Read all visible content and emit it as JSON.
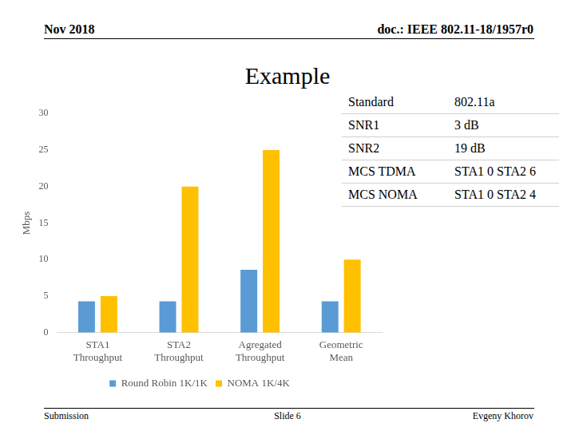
{
  "slide": {
    "date": "Nov 2018",
    "doc": "doc.: IEEE 802.11-18/1957r0",
    "title": "Example"
  },
  "table": {
    "rows": [
      [
        "Standard",
        "802.11a"
      ],
      [
        "SNR1",
        "3 dB"
      ],
      [
        "SNR2",
        "19 dB"
      ],
      [
        "MCS TDMA",
        "STA1 0 STA2 6"
      ],
      [
        "MCS NOMA",
        "STA1 0 STA2 4"
      ]
    ]
  },
  "footer": {
    "left": "Submission",
    "center": "Slide 6",
    "right": "Evgeny Khorov"
  },
  "chart_data": {
    "type": "bar",
    "y_label": "Mbps",
    "categories": [
      "STA1 Throughput",
      "STA2 Throughput",
      "Agregated Throughput",
      "Geometric Mean"
    ],
    "series": [
      {
        "name": "Round Robin 1K/1K",
        "color": "#5b9bd5",
        "values": [
          4.3,
          4.3,
          8.6,
          4.3
        ]
      },
      {
        "name": "NOMA 1K/4K",
        "color": "#ffc000",
        "values": [
          5,
          20,
          25,
          10
        ]
      }
    ],
    "ylim": [
      0,
      30
    ],
    "yticks": [
      0,
      5,
      10,
      15,
      20,
      25,
      30
    ],
    "grid": false,
    "legend": "bottom"
  }
}
